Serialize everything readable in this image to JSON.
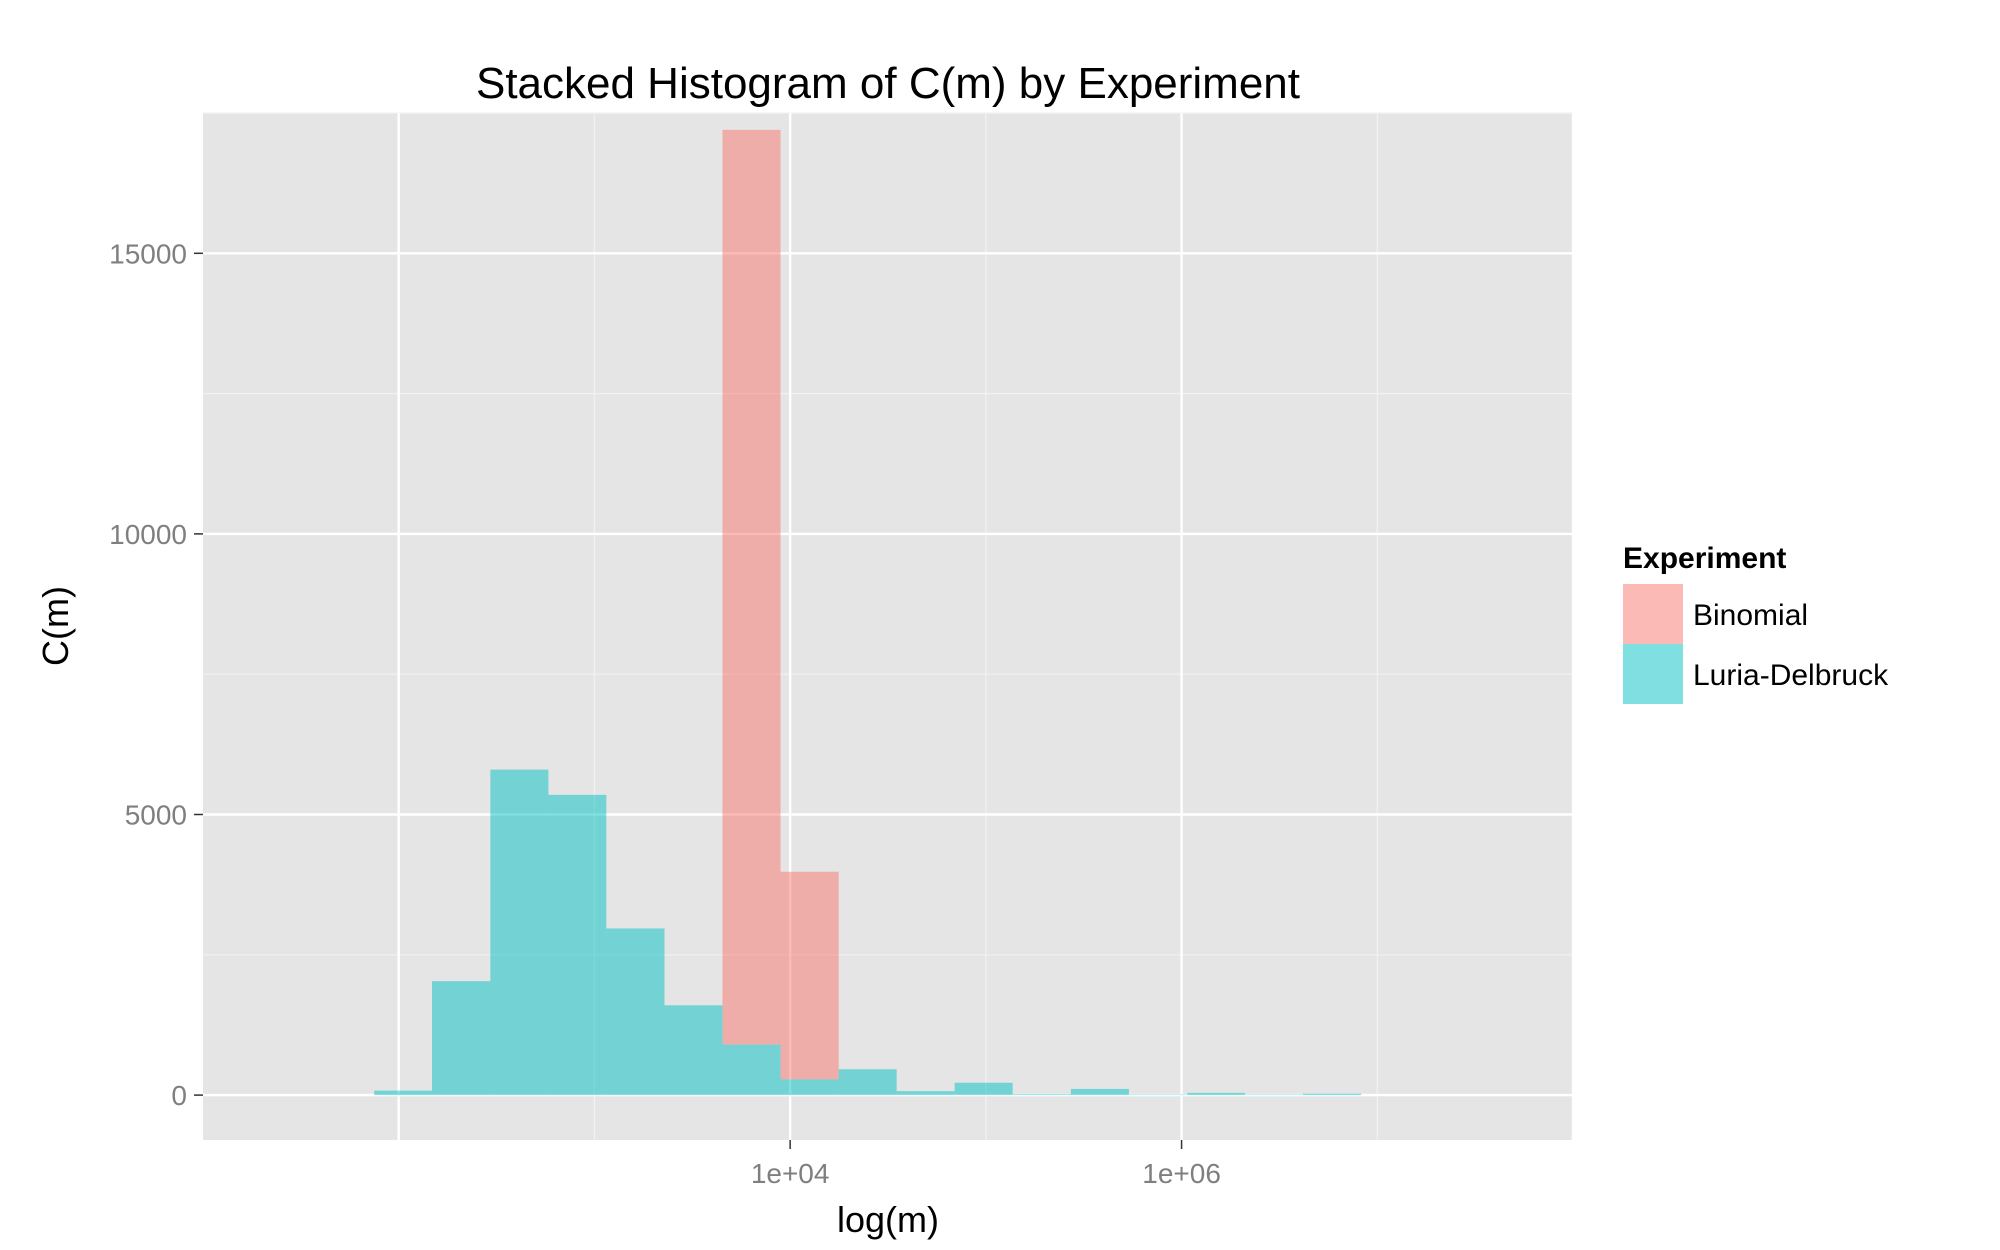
{
  "chart_data": {
    "type": "bar",
    "title": "Stacked Histogram of C(m) by Experiment",
    "xlabel": "log(m)",
    "ylabel": "C(m)",
    "x_scale": "log10",
    "xlim": [
      10,
      100000000
    ],
    "ylim": [
      -800,
      17500
    ],
    "y_ticks": [
      0,
      5000,
      10000,
      15000
    ],
    "y_tick_labels": [
      "0",
      "5000",
      "10000",
      "15000"
    ],
    "x_ticks": [
      10000,
      1000000
    ],
    "x_tick_labels": [
      "1e+04",
      "1e+06"
    ],
    "grid": true,
    "legend": {
      "title": "Experiment",
      "position": "right",
      "entries": [
        {
          "label": "Binomial",
          "color": "#F8766D"
        },
        {
          "label": "Luria-Delbruck",
          "color": "#00BFC4"
        }
      ]
    },
    "bins": [
      {
        "x_from": 75,
        "x_to": 148,
        "binomial": 0,
        "luria_delbruck": 80
      },
      {
        "x_from": 148,
        "x_to": 294,
        "binomial": 0,
        "luria_delbruck": 2030
      },
      {
        "x_from": 294,
        "x_to": 582,
        "binomial": 0,
        "luria_delbruck": 5800
      },
      {
        "x_from": 582,
        "x_to": 1150,
        "binomial": 0,
        "luria_delbruck": 5350
      },
      {
        "x_from": 1150,
        "x_to": 2280,
        "binomial": 0,
        "luria_delbruck": 2970
      },
      {
        "x_from": 2280,
        "x_to": 4510,
        "binomial": 0,
        "luria_delbruck": 1600
      },
      {
        "x_from": 4510,
        "x_to": 8930,
        "binomial": 16300,
        "luria_delbruck": 900
      },
      {
        "x_from": 8930,
        "x_to": 17700,
        "binomial": 3700,
        "luria_delbruck": 280
      },
      {
        "x_from": 17700,
        "x_to": 35000,
        "binomial": 0,
        "luria_delbruck": 460
      },
      {
        "x_from": 35000,
        "x_to": 69300,
        "binomial": 0,
        "luria_delbruck": 70
      },
      {
        "x_from": 69300,
        "x_to": 137000,
        "binomial": 0,
        "luria_delbruck": 220
      },
      {
        "x_from": 137000,
        "x_to": 272000,
        "binomial": 0,
        "luria_delbruck": 15
      },
      {
        "x_from": 272000,
        "x_to": 538000,
        "binomial": 0,
        "luria_delbruck": 110
      },
      {
        "x_from": 538000,
        "x_to": 1070000,
        "binomial": 0,
        "luria_delbruck": 10
      },
      {
        "x_from": 1070000,
        "x_to": 2110000,
        "binomial": 0,
        "luria_delbruck": 40
      },
      {
        "x_from": 2110000,
        "x_to": 4170000,
        "binomial": 0,
        "luria_delbruck": 10
      },
      {
        "x_from": 4170000,
        "x_to": 8260000,
        "binomial": 0,
        "luria_delbruck": 25
      }
    ]
  },
  "colors": {
    "panel_bg": "#E5E5E5",
    "grid_major": "#FFFFFF",
    "grid_minor": "#F2F2F2",
    "binomial_fill": "#F8766D",
    "luria_fill": "#00BFC4",
    "tick_text": "#7F7F7F",
    "text": "#000000"
  }
}
